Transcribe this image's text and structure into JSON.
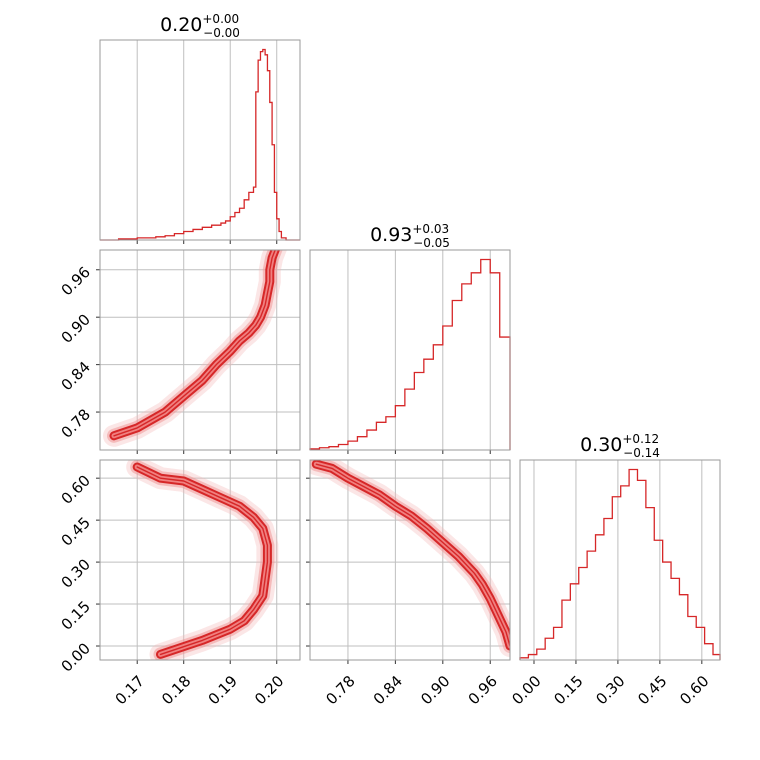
{
  "chart_data": {
    "type": "corner",
    "color": "#d62728",
    "grid": true,
    "parameters": [
      {
        "title_value": "0.20",
        "err_plus": "+0.00",
        "err_minus": "−0.00",
        "range": [
          0.162,
          0.205
        ],
        "ticks": [
          0.17,
          0.18,
          0.19,
          0.2
        ],
        "tick_labels": [
          "0.17",
          "0.18",
          "0.19",
          "0.20"
        ]
      },
      {
        "title_value": "0.93",
        "err_plus": "+0.03",
        "err_minus": "−0.05",
        "range": [
          0.732,
          0.985
        ],
        "ticks": [
          0.78,
          0.84,
          0.9,
          0.96
        ],
        "tick_labels": [
          "0.78",
          "0.84",
          "0.90",
          "0.96"
        ]
      },
      {
        "title_value": "0.30",
        "err_plus": "+0.12",
        "err_minus": "−0.14",
        "range": [
          -0.05,
          0.665
        ],
        "ticks": [
          0.0,
          0.15,
          0.3,
          0.45,
          0.6
        ],
        "tick_labels": [
          "0.00",
          "0.15",
          "0.30",
          "0.45",
          "0.60"
        ]
      }
    ],
    "histograms": [
      {
        "param": 0,
        "bin_edges": [
          0.162,
          0.166,
          0.17,
          0.174,
          0.176,
          0.178,
          0.18,
          0.182,
          0.184,
          0.186,
          0.188,
          0.189,
          0.19,
          0.191,
          0.192,
          0.193,
          0.194,
          0.1945,
          0.195,
          0.1955,
          0.196,
          0.1965,
          0.197,
          0.1975,
          0.198,
          0.1985,
          0.199,
          0.1995,
          0.2,
          0.2005,
          0.201,
          0.202,
          0.205
        ],
        "values": [
          0,
          1,
          2,
          3,
          4,
          6,
          8,
          10,
          12,
          14,
          16,
          18,
          22,
          26,
          30,
          38,
          45,
          45,
          50,
          140,
          170,
          178,
          180,
          175,
          160,
          130,
          90,
          45,
          20,
          8,
          2,
          0
        ]
      },
      {
        "param": 1,
        "bin_edges": [
          0.732,
          0.744,
          0.756,
          0.768,
          0.78,
          0.792,
          0.804,
          0.816,
          0.828,
          0.84,
          0.852,
          0.864,
          0.876,
          0.888,
          0.9,
          0.912,
          0.924,
          0.936,
          0.948,
          0.96,
          0.972,
          0.985
        ],
        "values": [
          1,
          2,
          3,
          5,
          8,
          12,
          18,
          25,
          30,
          40,
          55,
          70,
          82,
          95,
          112,
          135,
          150,
          160,
          172,
          160,
          102
        ]
      },
      {
        "param": 2,
        "bin_edges": [
          -0.05,
          -0.02,
          0.01,
          0.04,
          0.07,
          0.1,
          0.13,
          0.16,
          0.19,
          0.22,
          0.25,
          0.28,
          0.31,
          0.34,
          0.37,
          0.4,
          0.43,
          0.46,
          0.49,
          0.52,
          0.55,
          0.58,
          0.61,
          0.64,
          0.665
        ],
        "values": [
          2,
          5,
          10,
          20,
          30,
          55,
          70,
          85,
          100,
          115,
          130,
          150,
          160,
          175,
          165,
          140,
          110,
          90,
          75,
          60,
          40,
          30,
          15,
          5
        ]
      }
    ],
    "scatter_2d": [
      {
        "x_param": 0,
        "y_param": 1,
        "density_ridge": [
          [
            0.2,
            0.99
          ],
          [
            0.199,
            0.975
          ],
          [
            0.1985,
            0.96
          ],
          [
            0.1985,
            0.945
          ],
          [
            0.198,
            0.93
          ],
          [
            0.1975,
            0.915
          ],
          [
            0.1965,
            0.9
          ],
          [
            0.1955,
            0.89
          ],
          [
            0.194,
            0.88
          ],
          [
            0.192,
            0.87
          ],
          [
            0.19,
            0.857
          ],
          [
            0.187,
            0.84
          ],
          [
            0.184,
            0.82
          ],
          [
            0.18,
            0.8
          ],
          [
            0.176,
            0.78
          ],
          [
            0.17,
            0.76
          ],
          [
            0.165,
            0.75
          ]
        ]
      },
      {
        "x_param": 0,
        "y_param": 2,
        "density_ridge": [
          [
            0.17,
            0.64
          ],
          [
            0.175,
            0.6
          ],
          [
            0.18,
            0.59
          ],
          [
            0.184,
            0.56
          ],
          [
            0.188,
            0.53
          ],
          [
            0.192,
            0.5
          ],
          [
            0.195,
            0.46
          ],
          [
            0.197,
            0.42
          ],
          [
            0.198,
            0.36
          ],
          [
            0.198,
            0.3
          ],
          [
            0.1975,
            0.24
          ],
          [
            0.197,
            0.18
          ],
          [
            0.195,
            0.13
          ],
          [
            0.193,
            0.09
          ],
          [
            0.19,
            0.06
          ],
          [
            0.184,
            0.02
          ],
          [
            0.175,
            -0.03
          ]
        ]
      },
      {
        "x_param": 1,
        "y_param": 2,
        "density_ridge": [
          [
            0.74,
            0.65
          ],
          [
            0.76,
            0.635
          ],
          [
            0.78,
            0.6
          ],
          [
            0.8,
            0.57
          ],
          [
            0.82,
            0.54
          ],
          [
            0.84,
            0.5
          ],
          [
            0.86,
            0.465
          ],
          [
            0.88,
            0.42
          ],
          [
            0.9,
            0.37
          ],
          [
            0.92,
            0.32
          ],
          [
            0.94,
            0.26
          ],
          [
            0.95,
            0.22
          ],
          [
            0.96,
            0.17
          ],
          [
            0.97,
            0.11
          ],
          [
            0.98,
            0.05
          ],
          [
            0.985,
            0.0
          ]
        ]
      }
    ]
  }
}
